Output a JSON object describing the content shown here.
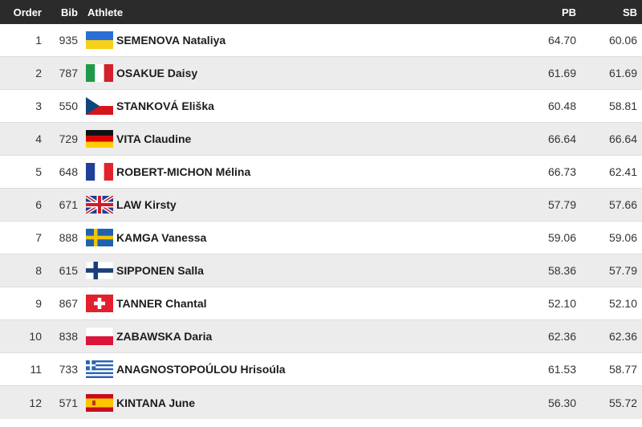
{
  "header": {
    "order": "Order",
    "bib": "Bib",
    "athlete": "Athlete",
    "pb": "PB",
    "sb": "SB"
  },
  "rows": [
    {
      "order": "1",
      "bib": "935",
      "flag": "ukraine-flag-icon",
      "name": "SEMENOVA Nataliya",
      "pb": "64.70",
      "sb": "60.06"
    },
    {
      "order": "2",
      "bib": "787",
      "flag": "italy-flag-icon",
      "name": "OSAKUE Daisy",
      "pb": "61.69",
      "sb": "61.69"
    },
    {
      "order": "3",
      "bib": "550",
      "flag": "czechia-flag-icon",
      "name": "STANKOVÁ Eliška",
      "pb": "60.48",
      "sb": "58.81"
    },
    {
      "order": "4",
      "bib": "729",
      "flag": "germany-flag-icon",
      "name": "VITA Claudine",
      "pb": "66.64",
      "sb": "66.64"
    },
    {
      "order": "5",
      "bib": "648",
      "flag": "france-flag-icon",
      "name": "ROBERT-MICHON Mélina",
      "pb": "66.73",
      "sb": "62.41"
    },
    {
      "order": "6",
      "bib": "671",
      "flag": "uk-flag-icon",
      "name": "LAW Kirsty",
      "pb": "57.79",
      "sb": "57.66"
    },
    {
      "order": "7",
      "bib": "888",
      "flag": "sweden-flag-icon",
      "name": "KAMGA Vanessa",
      "pb": "59.06",
      "sb": "59.06"
    },
    {
      "order": "8",
      "bib": "615",
      "flag": "finland-flag-icon",
      "name": "SIPPONEN Salla",
      "pb": "58.36",
      "sb": "57.79"
    },
    {
      "order": "9",
      "bib": "867",
      "flag": "switzerland-flag-icon",
      "name": "TANNER Chantal",
      "pb": "52.10",
      "sb": "52.10"
    },
    {
      "order": "10",
      "bib": "838",
      "flag": "poland-flag-icon",
      "name": "ZABAWSKA Daria",
      "pb": "62.36",
      "sb": "62.36"
    },
    {
      "order": "11",
      "bib": "733",
      "flag": "greece-flag-icon",
      "name": "ANAGNOSTOPOÚLOU Hrisoúla",
      "pb": "61.53",
      "sb": "58.77"
    },
    {
      "order": "12",
      "bib": "571",
      "flag": "spain-flag-icon",
      "name": "KINTANA June",
      "pb": "56.30",
      "sb": "55.72"
    }
  ]
}
